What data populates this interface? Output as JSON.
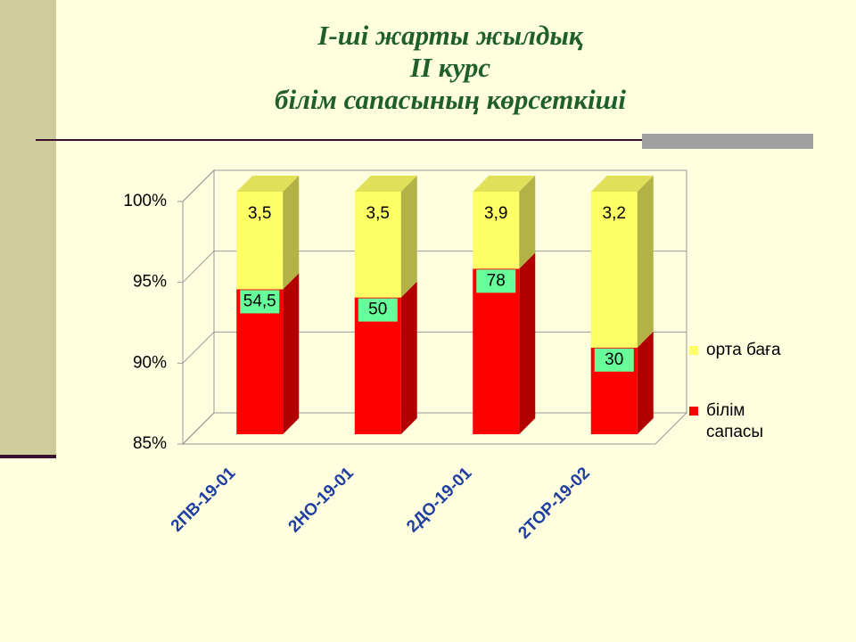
{
  "slide": {
    "title_lines": [
      "І-ші жарты жылдық",
      "ІІ курс",
      "білім сапасының көрсеткіші"
    ]
  },
  "chart_data": {
    "type": "bar",
    "stacking": "percent",
    "categories": [
      "2ПВ-19-01",
      "2НО-19-01",
      "2ДО-19-01",
      "2ТОР-19-02"
    ],
    "series": [
      {
        "name": "білім сапасы",
        "color": "#ff0000",
        "values": [
          54.5,
          50,
          78,
          30
        ],
        "value_labels": [
          "54,5",
          "50",
          "78",
          "30"
        ]
      },
      {
        "name": "орта баға",
        "color": "#ffff66",
        "values": [
          3.5,
          3.5,
          3.9,
          3.2
        ],
        "value_labels": [
          "3,5",
          "3,5",
          "3,9",
          "3,2"
        ]
      }
    ],
    "ylim": [
      85,
      100
    ],
    "yticks": [
      {
        "value": 85,
        "label": "85%"
      },
      {
        "value": 90,
        "label": "90%"
      },
      {
        "value": 95,
        "label": "95%"
      },
      {
        "value": 100,
        "label": "100%"
      }
    ],
    "grid": true,
    "legend": "right"
  }
}
